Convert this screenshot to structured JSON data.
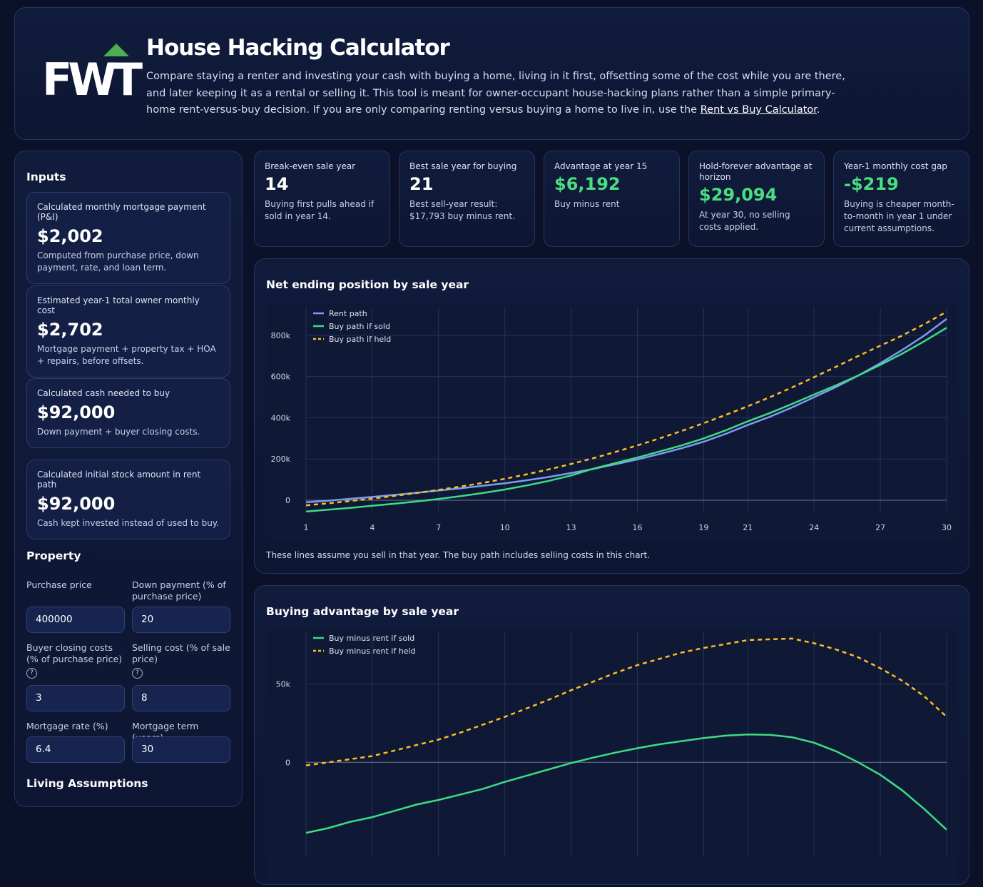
{
  "header": {
    "logo": "FWT",
    "title": "House Hacking Calculator",
    "description": "Compare staying a renter and investing your cash with buying a home, living in it first, offsetting some of the cost while you are there, and later keeping it as a rental or selling it. This tool is meant for owner-occupant house-hacking plans rather than a simple primary-home rent-versus-buy decision. If you are only comparing renting versus buying a home to live in, use the ",
    "link": "Rent vs Buy Calculator",
    "description_end": "."
  },
  "inputs": {
    "title": "Inputs",
    "cards": [
      {
        "label": "Calculated monthly mortgage payment (P&I)",
        "value": "$2,002",
        "note": "Computed from purchase price, down payment, rate, and loan term."
      },
      {
        "label": "Estimated year-1 total owner monthly cost",
        "value": "$2,702",
        "note": "Mortgage payment + property tax + HOA + repairs, before offsets."
      },
      {
        "label": "Calculated cash needed to buy",
        "value": "$92,000",
        "note": "Down payment + buyer closing costs."
      },
      {
        "label": "Calculated initial stock amount in rent path",
        "value": "$92,000",
        "note": "Cash kept invested instead of used to buy."
      }
    ]
  },
  "property": {
    "title": "Property",
    "fields": [
      {
        "label": "Purchase price",
        "value": "400000"
      },
      {
        "label": "Down payment (% of purchase price)",
        "value": "20"
      },
      {
        "label": "Buyer closing costs (% of purchase price)",
        "help": "?",
        "value": "3"
      },
      {
        "label": "Selling cost (% of sale price)",
        "help": "?",
        "value": "8"
      },
      {
        "label": "Mortgage rate (%)",
        "value": "6.4"
      },
      {
        "label": "Mortgage term (years)",
        "value": "30"
      }
    ]
  },
  "next_section": "Living Assumptions",
  "kpis": [
    {
      "label": "Break-even sale year",
      "value": "14",
      "note": "Buying first pulls ahead if sold in year 14."
    },
    {
      "label": "Best sale year for buying",
      "value": "21",
      "note": "Best sell-year result: $17,793 buy minus rent."
    },
    {
      "label": "Advantage at year 15",
      "value": "$6,192",
      "note": "Buy minus rent",
      "color": "#4ade80"
    },
    {
      "label": "Hold-forever advantage at horizon",
      "value": "$29,094",
      "note": "At year 30, no selling costs applied.",
      "color": "#4ade80"
    },
    {
      "label": "Year-1 monthly cost gap",
      "value": "-$219",
      "note": "Buying is cheaper month-to-month in year 1 under current assumptions.",
      "color": "#4ade80"
    }
  ],
  "chart_data": [
    {
      "type": "line",
      "title": "Net ending position by sale year",
      "note": "These lines assume you sell in that year. The buy path includes selling costs in this chart.",
      "x": [
        1,
        2,
        3,
        4,
        5,
        6,
        7,
        8,
        9,
        10,
        11,
        12,
        13,
        14,
        15,
        16,
        17,
        18,
        19,
        20,
        21,
        22,
        23,
        24,
        25,
        26,
        27,
        28,
        29,
        30
      ],
      "xlim": [
        1,
        30
      ],
      "xticks": [
        1,
        4,
        7,
        10,
        13,
        16,
        19,
        21,
        24,
        27,
        30
      ],
      "ylim": [
        -52000,
        935000
      ],
      "yticks": [
        0,
        {
          "value": 200000,
          "label": "200k"
        },
        {
          "value": 400000,
          "label": "400k"
        },
        {
          "value": 600000,
          "label": "600k"
        },
        {
          "value": 800000,
          "label": "800k"
        }
      ],
      "grid": true,
      "legend": "top-left",
      "series": [
        {
          "name": "Rent path",
          "color": "#7c9cf2",
          "dashed": false,
          "values": [
            -10000,
            -2000,
            7000,
            16000,
            26000,
            36000,
            47000,
            58000,
            70000,
            82000,
            97000,
            113000,
            132000,
            152000,
            174000,
            198000,
            224000,
            252000,
            284000,
            322000,
            365000,
            405000,
            450000,
            500000,
            550000,
            605000,
            665000,
            730000,
            800000,
            880000
          ]
        },
        {
          "name": "Buy path if sold",
          "color": "#3ddc84",
          "dashed": false,
          "values": [
            -55000,
            -46000,
            -37000,
            -27000,
            -17000,
            -6000,
            6000,
            20000,
            35000,
            52000,
            72000,
            94000,
            120000,
            153000,
            180000,
            207000,
            236000,
            266000,
            300000,
            339000,
            383000,
            423000,
            467000,
            513000,
            558000,
            605000,
            657000,
            712000,
            772000,
            837000
          ]
        },
        {
          "name": "Buy path if held",
          "color": "#fbbf24",
          "dashed": true,
          "values": [
            -25000,
            -15000,
            -4000,
            8000,
            21000,
            35000,
            50000,
            66000,
            84000,
            104000,
            126000,
            150000,
            176000,
            204000,
            234000,
            266000,
            300000,
            336000,
            374000,
            414000,
            456000,
            500000,
            547000,
            597000,
            648000,
            700000,
            750000,
            800000,
            855000,
            915000
          ]
        }
      ]
    },
    {
      "type": "line",
      "title": "Buying advantage by sale year",
      "x": [
        1,
        2,
        3,
        4,
        5,
        6,
        7,
        8,
        9,
        10,
        11,
        12,
        13,
        14,
        15,
        16,
        17,
        18,
        19,
        20,
        21,
        22,
        23,
        24,
        25,
        26,
        27,
        28,
        29,
        30
      ],
      "xlim": [
        1,
        30
      ],
      "xticks": [
        1,
        4,
        7,
        10,
        13,
        16,
        19,
        21,
        24,
        27,
        30
      ],
      "ylim": [
        -60000,
        83000
      ],
      "yticks": [
        0,
        {
          "value": 50000,
          "label": "50k"
        }
      ],
      "grid": true,
      "legend": "top-left",
      "series": [
        {
          "name": "Buy minus rent if sold",
          "color": "#3ddc84",
          "dashed": false,
          "values": [
            -45000,
            -42000,
            -38000,
            -35000,
            -31000,
            -27000,
            -24000,
            -20500,
            -17000,
            -12500,
            -8500,
            -4500,
            -500,
            3000,
            6192,
            9000,
            11500,
            13500,
            15500,
            17000,
            17793,
            17500,
            16000,
            12500,
            7000,
            0,
            -8000,
            -18000,
            -30000,
            -43000
          ]
        },
        {
          "name": "Buy minus rent if held",
          "color": "#fbbf24",
          "dashed": true,
          "values": [
            -2000,
            0,
            2000,
            4000,
            7500,
            11000,
            14500,
            19000,
            24000,
            29000,
            34500,
            40000,
            46000,
            51500,
            57000,
            62000,
            66000,
            70000,
            73000,
            75500,
            78000,
            78500,
            79000,
            76000,
            72000,
            67000,
            60000,
            52000,
            42000,
            29094
          ]
        }
      ]
    }
  ]
}
